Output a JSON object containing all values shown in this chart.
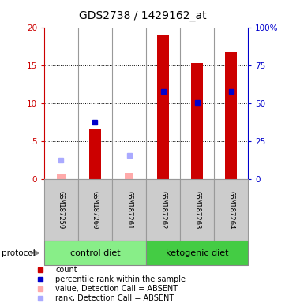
{
  "title": "GDS2738 / 1429162_at",
  "samples": [
    "GSM187259",
    "GSM187260",
    "GSM187261",
    "GSM187262",
    "GSM187263",
    "GSM187264"
  ],
  "count_values": [
    null,
    6.6,
    null,
    19.0,
    15.3,
    16.7
  ],
  "percentile_values": [
    null,
    37.5,
    null,
    57.5,
    50.5,
    57.5
  ],
  "absent_value_values": [
    0.7,
    null,
    0.8,
    null,
    null,
    null
  ],
  "absent_rank_values": [
    12.5,
    null,
    15.5,
    null,
    null,
    null
  ],
  "groups": [
    {
      "label": "control diet",
      "indices": [
        0,
        1,
        2
      ],
      "color": "#88ee88"
    },
    {
      "label": "ketogenic diet",
      "indices": [
        3,
        4,
        5
      ],
      "color": "#44cc44"
    }
  ],
  "ylim_left": [
    0,
    20
  ],
  "ylim_right": [
    0,
    100
  ],
  "yticks_left": [
    0,
    5,
    10,
    15,
    20
  ],
  "ytick_labels_left": [
    "0",
    "5",
    "10",
    "15",
    "20"
  ],
  "yticks_right": [
    0,
    25,
    50,
    75,
    100
  ],
  "ytick_labels_right": [
    "0",
    "25",
    "50",
    "75",
    "100%"
  ],
  "left_axis_color": "#cc0000",
  "right_axis_color": "#0000cc",
  "count_color": "#cc0000",
  "percentile_color": "#0000cc",
  "absent_value_color": "#ffaaaa",
  "absent_rank_color": "#aaaaff",
  "bg_color": "#ffffff",
  "bar_width": 0.35,
  "grid_lines": [
    5,
    10,
    15
  ],
  "sample_box_color": "#cccccc",
  "sample_box_border": "#999999",
  "legend_items": [
    {
      "color": "#cc0000",
      "label": "count"
    },
    {
      "color": "#0000cc",
      "label": "percentile rank within the sample"
    },
    {
      "color": "#ffaaaa",
      "label": "value, Detection Call = ABSENT"
    },
    {
      "color": "#aaaaff",
      "label": "rank, Detection Call = ABSENT"
    }
  ]
}
